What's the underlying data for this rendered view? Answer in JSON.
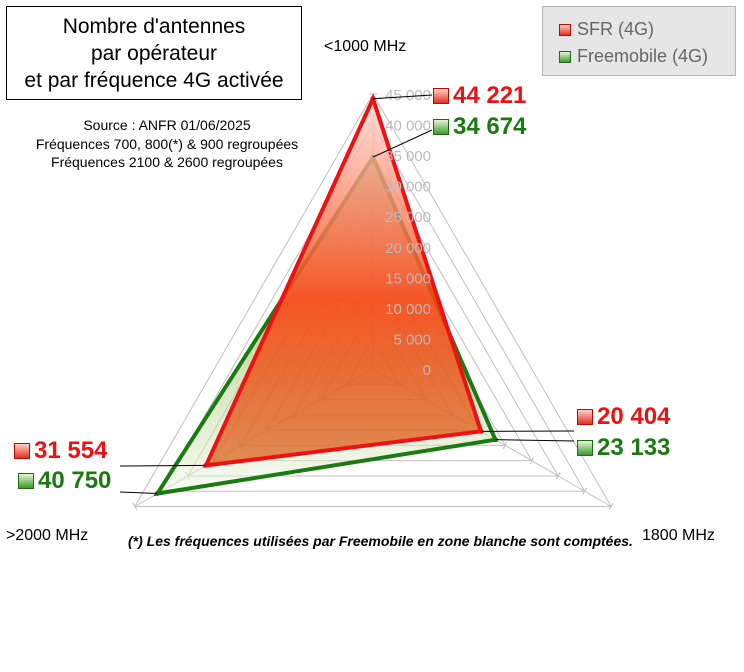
{
  "title_lines": "Nombre d'antennes\npar opérateur\net par fréquence 4G activée",
  "source_lines": "Source : ANFR 01/06/2025\nFréquences 700, 800(*) & 900 regroupées\nFréquences 2100 & 2600 regroupées",
  "footnote": "(*) Les fréquences utilisées par Freemobile en zone blanche sont comptées.",
  "legend": {
    "sfr": "SFR (4G)",
    "free": "Freemobile (4G)"
  },
  "colors": {
    "sfr": "#ee1111",
    "free": "#1c7a12",
    "grid": "#c0c0c0",
    "tick_label": "#bbbbbb"
  },
  "value_labels": {
    "sfr_low": "44 221",
    "free_low": "34 674",
    "sfr_mid": "20 404",
    "free_mid": "23 133",
    "sfr_high": "31 554",
    "free_high": "40 750"
  },
  "chart_data": {
    "type": "radar",
    "axes": [
      "<1000 MHz",
      "1800 MHz",
      ">2000 MHz"
    ],
    "rlim": [
      0,
      45000
    ],
    "ticks": [
      0,
      5000,
      10000,
      15000,
      20000,
      25000,
      30000,
      35000,
      40000,
      45000
    ],
    "tick_labels": [
      "0",
      "5 000",
      "10 000",
      "15 000",
      "20 000",
      "25 000",
      "30 000",
      "35 000",
      "40 000",
      "45 000"
    ],
    "series": [
      {
        "name": "SFR (4G)",
        "values": [
          44221,
          20404,
          31554
        ]
      },
      {
        "name": "Freemobile (4G)",
        "values": [
          34674,
          23133,
          40750
        ]
      }
    ],
    "grid": true,
    "legend_position": "top-right"
  }
}
